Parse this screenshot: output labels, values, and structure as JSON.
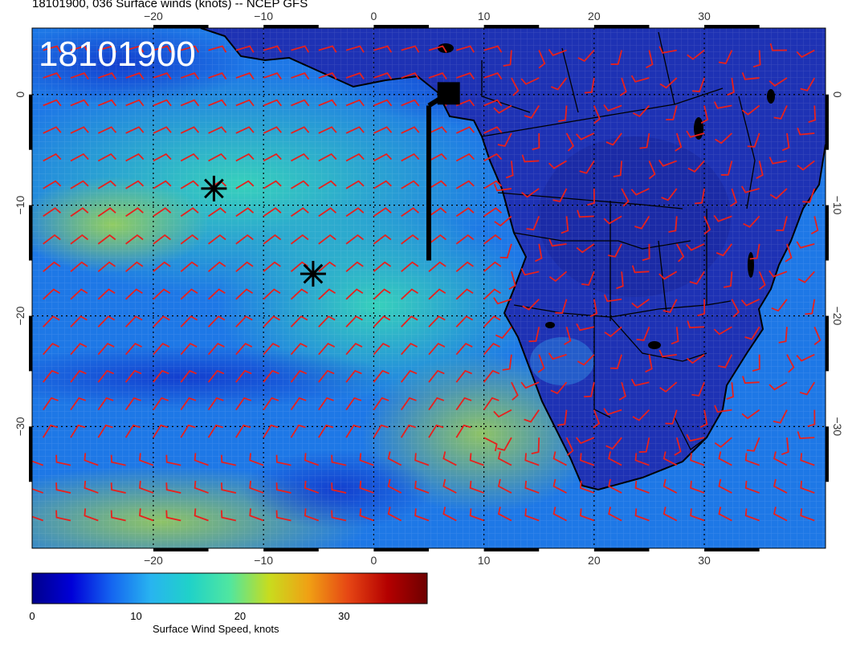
{
  "title": "18101900, 036 Surface winds (knots) -- NCEP GFS",
  "overlay_label": "18101900",
  "map": {
    "lon_range": [
      -31,
      41
    ],
    "lat_range": [
      -41,
      6
    ],
    "lon_ticks": [
      -20,
      -10,
      0,
      10,
      20,
      30
    ],
    "lat_ticks": [
      0,
      -10,
      -20,
      -30
    ],
    "lon_tick_labels": [
      "−20",
      "−10",
      "0",
      "10",
      "20",
      "30"
    ],
    "lat_tick_labels": [
      "0",
      "−10",
      "−20",
      "−30"
    ],
    "grid": true,
    "wind_barb_color": "#e8201c",
    "coastline_color": "#000000"
  },
  "markers": [
    {
      "type": "asterisk",
      "lon": -14.5,
      "lat": -8.5
    },
    {
      "type": "asterisk",
      "lon": -5.5,
      "lat": -16.2
    }
  ],
  "track": {
    "lon": 5,
    "lat_start": -15,
    "lat_end": -1,
    "end_square": {
      "lon": 6.8,
      "lat": 0.1
    }
  },
  "colorbar": {
    "label": "Surface Wind Speed, knots",
    "ticks": [
      "0",
      "10",
      "20",
      "30"
    ],
    "tick_values": [
      0,
      10,
      20,
      30
    ],
    "range": [
      0,
      38
    ],
    "colors": [
      "#00008b",
      "#0000d8",
      "#1464f0",
      "#28b4f0",
      "#20d2c8",
      "#50e6a0",
      "#c8dc1e",
      "#f0a014",
      "#e64614",
      "#b40000",
      "#6e0000"
    ]
  }
}
